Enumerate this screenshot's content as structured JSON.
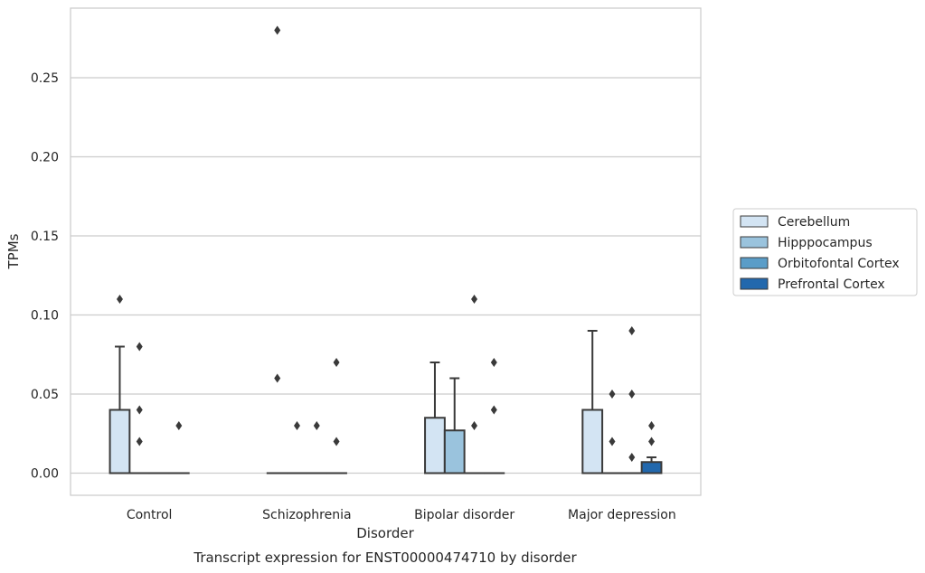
{
  "chart_data": {
    "type": "box",
    "xlabel": "Disorder",
    "ylabel": "TPMs",
    "caption": "Transcript expression for ENST00000474710 by disorder",
    "categories": [
      "Control",
      "Schizophrenia",
      "Bipolar disorder",
      "Major depression"
    ],
    "ylim": [
      -0.014,
      0.294
    ],
    "yticks": [
      0.0,
      0.05,
      0.1,
      0.15,
      0.2,
      0.25
    ],
    "ytick_labels": [
      "0.00",
      "0.05",
      "0.10",
      "0.15",
      "0.20",
      "0.25"
    ],
    "grid": "horizontal",
    "legend_position": "right",
    "series": [
      {
        "name": "Cerebellum",
        "color": "#d3e4f3",
        "boxes": [
          {
            "q1": 0,
            "median": 0,
            "q3": 0.04,
            "whisker_low": 0,
            "whisker_high": 0.08,
            "outliers": [
              0.11
            ]
          },
          {
            "q1": 0,
            "median": 0,
            "q3": 0,
            "whisker_low": 0,
            "whisker_high": 0,
            "outliers": [
              0.28,
              0.06
            ]
          },
          {
            "q1": 0,
            "median": 0,
            "q3": 0.035,
            "whisker_low": 0,
            "whisker_high": 0.07,
            "outliers": []
          },
          {
            "q1": 0,
            "median": 0,
            "q3": 0.04,
            "whisker_low": 0,
            "whisker_high": 0.09,
            "outliers": []
          }
        ]
      },
      {
        "name": "Hipppocampus",
        "color": "#9ac3dd",
        "boxes": [
          {
            "q1": 0,
            "median": 0,
            "q3": 0,
            "whisker_low": 0,
            "whisker_high": 0,
            "outliers": [
              0.08,
              0.04,
              0.02
            ]
          },
          {
            "q1": 0,
            "median": 0,
            "q3": 0,
            "whisker_low": 0,
            "whisker_high": 0,
            "outliers": [
              0.03
            ]
          },
          {
            "q1": 0,
            "median": 0,
            "q3": 0.027,
            "whisker_low": 0,
            "whisker_high": 0.06,
            "outliers": []
          },
          {
            "q1": 0,
            "median": 0,
            "q3": 0,
            "whisker_low": 0,
            "whisker_high": 0,
            "outliers": [
              0.05,
              0.02
            ]
          }
        ]
      },
      {
        "name": "Orbitofontal Cortex",
        "color": "#5a9dc8",
        "boxes": [
          {
            "q1": 0,
            "median": 0,
            "q3": 0,
            "whisker_low": 0,
            "whisker_high": 0,
            "outliers": []
          },
          {
            "q1": 0,
            "median": 0,
            "q3": 0,
            "whisker_low": 0,
            "whisker_high": 0,
            "outliers": [
              0.03
            ]
          },
          {
            "q1": 0,
            "median": 0,
            "q3": 0,
            "whisker_low": 0,
            "whisker_high": 0,
            "outliers": [
              0.11,
              0.03
            ]
          },
          {
            "q1": 0,
            "median": 0,
            "q3": 0,
            "whisker_low": 0,
            "whisker_high": 0,
            "outliers": [
              0.09,
              0.05,
              0.01
            ]
          }
        ]
      },
      {
        "name": "Prefrontal Cortex",
        "color": "#2268ad",
        "boxes": [
          {
            "q1": 0,
            "median": 0,
            "q3": 0,
            "whisker_low": 0,
            "whisker_high": 0,
            "outliers": [
              0.03
            ]
          },
          {
            "q1": 0,
            "median": 0,
            "q3": 0,
            "whisker_low": 0,
            "whisker_high": 0,
            "outliers": [
              0.07,
              0.02
            ]
          },
          {
            "q1": 0,
            "median": 0,
            "q3": 0,
            "whisker_low": 0,
            "whisker_high": 0,
            "outliers": [
              0.07,
              0.04
            ]
          },
          {
            "q1": 0,
            "median": 0,
            "q3": 0.007,
            "whisker_low": 0,
            "whisker_high": 0.01,
            "outliers": [
              0.03,
              0.02
            ]
          }
        ]
      }
    ]
  }
}
